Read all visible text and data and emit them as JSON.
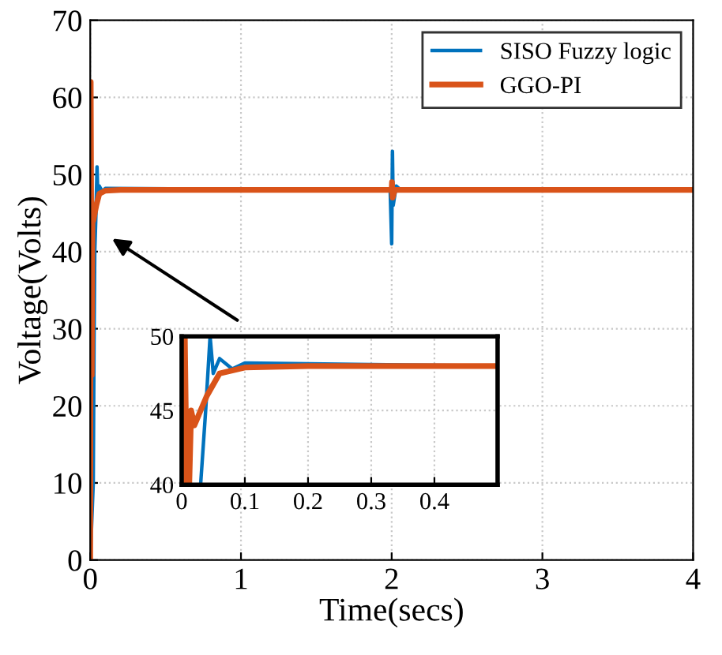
{
  "chart_data": [
    {
      "type": "line",
      "xlabel": "Time(secs)",
      "ylabel": "Voltage(Volts)",
      "xlim": [
        0,
        4
      ],
      "ylim": [
        0,
        70
      ],
      "xticks": [
        0,
        1,
        2,
        3,
        4
      ],
      "yticks": [
        0,
        10,
        20,
        30,
        40,
        50,
        60,
        70
      ],
      "grid": true,
      "legend": "top right",
      "series": [
        {
          "name": "SISO Fuzzy logic",
          "color": "#0072bd",
          "x": [
            0,
            0.02,
            0.025,
            0.03,
            0.038,
            0.045,
            0.05,
            0.06,
            0.08,
            0.1,
            1.99,
            2.0,
            2.005,
            2.01,
            2.03,
            2.06,
            4
          ],
          "values": [
            0,
            10,
            28,
            40,
            45,
            51,
            47.5,
            48.5,
            47.8,
            48.2,
            48,
            41,
            53,
            46,
            48.5,
            48,
            48
          ]
        },
        {
          "name": "GGO-PI",
          "color": "#d95319",
          "x": [
            0,
            0.003,
            0.01,
            0.013,
            0.015,
            0.02,
            0.03,
            0.04,
            0.06,
            0.1,
            0.2,
            1,
            2,
            2.002,
            2.006,
            2.02,
            4
          ],
          "values": [
            0,
            62,
            24,
            40,
            45,
            44,
            45,
            46,
            47.5,
            47.9,
            48,
            48,
            48,
            49,
            47,
            48,
            48
          ]
        }
      ]
    },
    {
      "type": "line",
      "xlim": [
        0,
        0.5
      ],
      "ylim": [
        40,
        50
      ],
      "xticks": [
        0,
        0.1,
        0.2,
        0.3,
        0.4
      ],
      "yticks": [
        40,
        45,
        50
      ],
      "grid": true,
      "series": [
        {
          "color": "#0072bd",
          "x": [
            0.03,
            0.038,
            0.045,
            0.05,
            0.06,
            0.08,
            0.1,
            0.5
          ],
          "values": [
            40,
            45,
            50,
            47.5,
            48.5,
            47.8,
            48.2,
            48
          ]
        },
        {
          "color": "#d95319",
          "x": [
            0.002,
            0.005,
            0.008,
            0.012,
            0.015,
            0.02,
            0.03,
            0.04,
            0.06,
            0.1,
            0.2,
            0.5
          ],
          "values": [
            40,
            50,
            40,
            40,
            45,
            44,
            45,
            46,
            47.5,
            47.9,
            48,
            48
          ]
        }
      ]
    }
  ]
}
